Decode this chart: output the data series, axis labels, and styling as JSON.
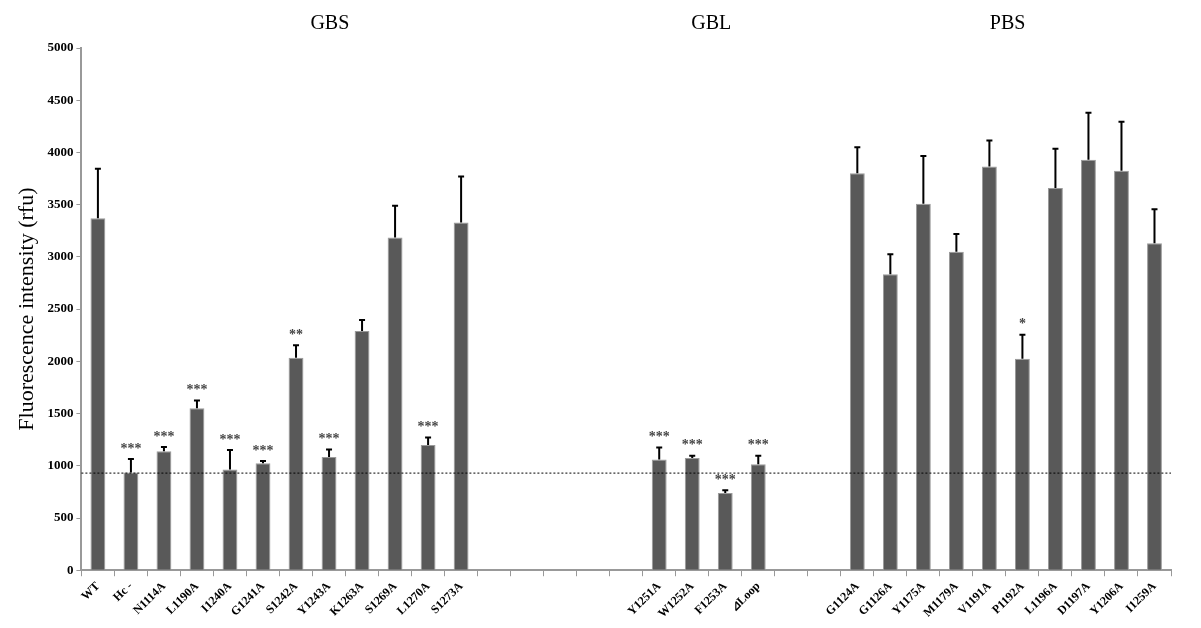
{
  "chart_data": {
    "type": "bar",
    "ylabel": "Fluorescence intensity (rfu)",
    "categories": [
      "WT",
      "Hc -",
      "N1114A",
      "L1190A",
      "I1240A",
      "G1241A",
      "S1242A",
      "Y1243A",
      "K1263A",
      "S1269A",
      "L1270A",
      "S1273A",
      null,
      null,
      null,
      null,
      null,
      "Y1251A",
      "W1252A",
      "F1253A",
      "⊿Loop",
      null,
      null,
      "G1124A",
      "G1126A",
      "Y1175A",
      "M1179A",
      "V1191A",
      "P1192A",
      "L1196A",
      "D1197A",
      "Y1206A",
      "I1259A"
    ],
    "values": [
      3370,
      935,
      1140,
      1550,
      965,
      1025,
      2035,
      1085,
      2290,
      3185,
      1200,
      3330,
      null,
      null,
      null,
      null,
      null,
      1060,
      1075,
      740,
      1015,
      null,
      null,
      3800,
      2835,
      3510,
      3050,
      3865,
      2025,
      3660,
      3930,
      3825,
      3130
    ],
    "errors": [
      [
        3370,
        3845
      ],
      [
        935,
        1065
      ],
      [
        1140,
        1180
      ],
      [
        1550,
        1625
      ],
      [
        965,
        1150
      ],
      [
        1025,
        1045
      ],
      [
        2035,
        2155
      ],
      [
        1085,
        1155
      ],
      [
        2290,
        2395
      ],
      [
        3185,
        3490
      ],
      [
        1200,
        1270
      ],
      [
        3330,
        3770
      ],
      null,
      null,
      null,
      null,
      null,
      [
        1060,
        1175
      ],
      [
        1075,
        1095
      ],
      [
        740,
        765
      ],
      [
        1015,
        1095
      ],
      null,
      null,
      [
        3800,
        4050
      ],
      [
        2835,
        3025
      ],
      [
        3510,
        3965
      ],
      [
        3050,
        3220
      ],
      [
        3865,
        4115
      ],
      [
        2025,
        2255
      ],
      [
        3660,
        4035
      ],
      [
        3930,
        4380
      ],
      [
        3825,
        4295
      ],
      [
        3130,
        3455
      ]
    ],
    "color": "#595959",
    "ylim": [
      0,
      5000
    ],
    "yticks": [
      0,
      500,
      1000,
      1500,
      2000,
      2500,
      3000,
      3500,
      4000,
      4500,
      5000
    ],
    "grid": false,
    "legend": false,
    "ref_lines": [
      {
        "axis": "y",
        "value": 930,
        "color": "#000000",
        "line_style": "dotted"
      }
    ],
    "annotations": [
      "GBS",
      "GBL",
      "PBS",
      {
        "text": "***",
        "x": "Hc -",
        "y": 1065
      },
      {
        "text": "***",
        "x": "N1114A",
        "y": 1180
      },
      {
        "text": "***",
        "x": "L1190A",
        "y": 1625
      },
      {
        "text": "***",
        "x": "I1240A",
        "y": 1150
      },
      {
        "text": "***",
        "x": "G1241A",
        "y": 1045
      },
      {
        "text": "**",
        "x": "S1242A",
        "y": 2155
      },
      {
        "text": "***",
        "x": "Y1243A",
        "y": 1155
      },
      {
        "text": "***",
        "x": "L1270A",
        "y": 1270
      },
      {
        "text": "***",
        "x": "Y1251A",
        "y": 1175
      },
      {
        "text": "***",
        "x": "W1252A",
        "y": 1095
      },
      {
        "text": "***",
        "x": "F1253A",
        "y": 765
      },
      {
        "text": "***",
        "x": "⊿Loop",
        "y": 1095
      },
      {
        "text": "*",
        "x": "P1192A",
        "y": 2255
      }
    ]
  }
}
